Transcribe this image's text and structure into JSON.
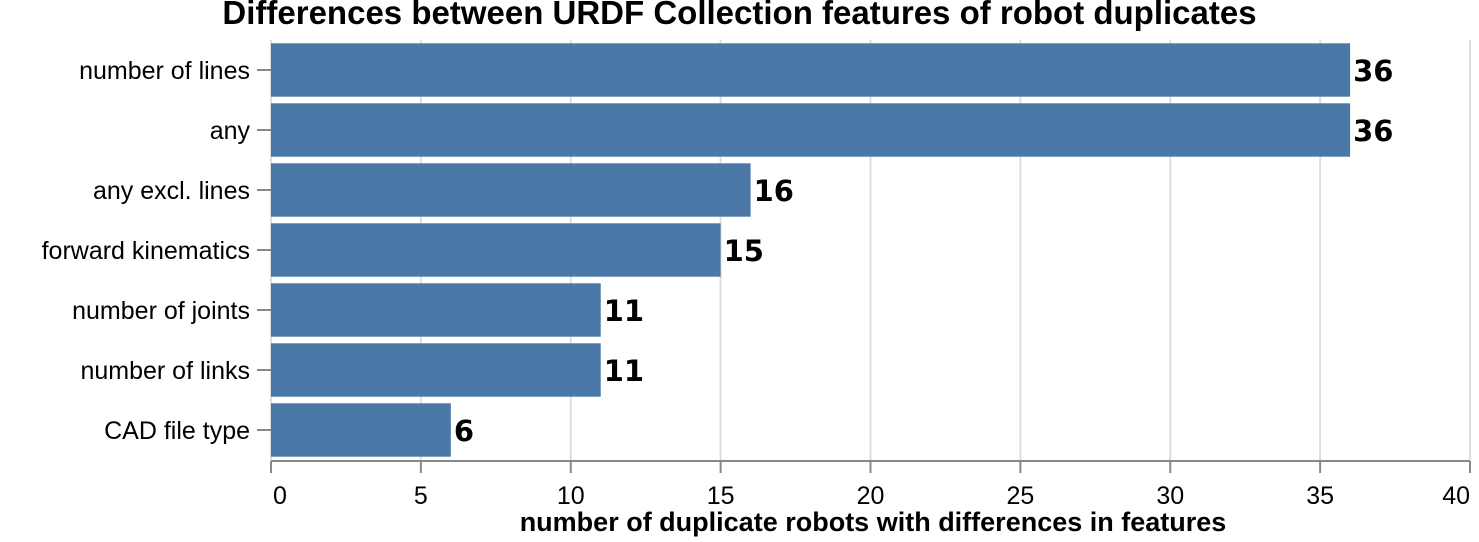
{
  "chart_data": {
    "type": "bar",
    "orientation": "horizontal",
    "title": "Differences between URDF Collection features of robot duplicates",
    "xlabel": "number of duplicate robots with differences in features",
    "ylabel": "",
    "categories": [
      "number of lines",
      "any",
      "any excl. lines",
      "forward kinematics",
      "number of joints",
      "number of links",
      "CAD file type"
    ],
    "values": [
      36,
      36,
      16,
      15,
      11,
      11,
      6
    ],
    "xlim": [
      0,
      40
    ],
    "xticks": [
      0,
      5,
      10,
      15,
      20,
      25,
      30,
      35,
      40
    ],
    "grid": true,
    "bar_color": "#4c78a8",
    "value_labels": true
  }
}
